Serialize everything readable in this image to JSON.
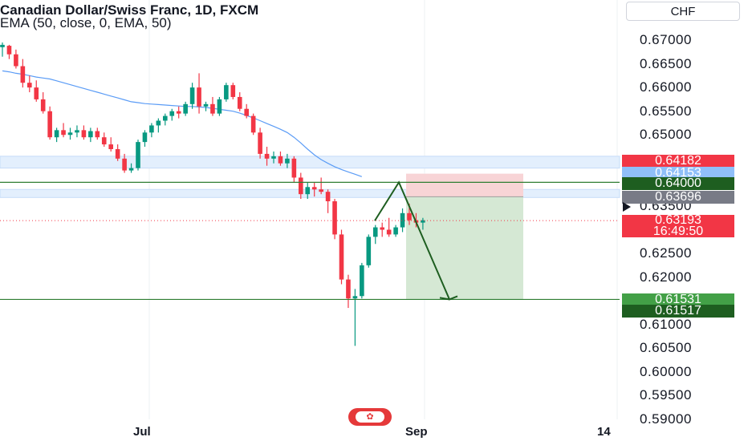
{
  "header": {
    "title": "Canadian Dollar/Swiss Franc, 1D, FXCM",
    "indicator": "EMA (50, close, 0, EMA, 50)",
    "currency_button": "CHF"
  },
  "price_axis": {
    "ticks": [
      "0.67000",
      "0.66500",
      "0.66000",
      "0.65500",
      "0.65000",
      "0.63500",
      "0.62500",
      "0.62000",
      "0.61000",
      "0.60500",
      "0.60000",
      "0.59500",
      "0.59000"
    ]
  },
  "price_tags": {
    "tag_a": "0.64182",
    "tag_b": "0.64153",
    "tag_c": "0.64000",
    "tag_d": "0.63696",
    "current_price": "0.63193",
    "countdown": "16:49:50",
    "tag_e": "0.61531",
    "tag_f": "0.61517"
  },
  "time_axis": {
    "labels": [
      "Jul",
      "Sep",
      "14"
    ]
  },
  "flag_icon": "canada-flag-icon",
  "colors": {
    "up": "#089981",
    "down": "#f23645",
    "ema": "#5b9cf6",
    "level": "#2e7d32",
    "tag_a": "#f23645",
    "tag_b": "#90bff9",
    "tag_c": "#1e5e20",
    "tag_d": "#787b86",
    "tag_current": "#f23645",
    "tag_e": "#43a047",
    "tag_f": "#1e5e20"
  },
  "chart_data": {
    "type": "candlestick",
    "title": "Canadian Dollar/Swiss Franc, 1D, FXCM",
    "ylim": [
      0.59,
      0.67
    ],
    "x_labels": [
      "Jul",
      "Sep",
      "14"
    ],
    "ohlc": [
      [
        0.6685,
        0.6695,
        0.6665,
        0.669
      ],
      [
        0.6688,
        0.669,
        0.666,
        0.667
      ],
      [
        0.667,
        0.668,
        0.664,
        0.6645
      ],
      [
        0.6645,
        0.666,
        0.66,
        0.661
      ],
      [
        0.661,
        0.6625,
        0.659,
        0.66
      ],
      [
        0.66,
        0.6615,
        0.657,
        0.6575
      ],
      [
        0.6575,
        0.659,
        0.6545,
        0.655
      ],
      [
        0.655,
        0.656,
        0.649,
        0.6495
      ],
      [
        0.6495,
        0.6515,
        0.6485,
        0.651
      ],
      [
        0.651,
        0.6525,
        0.6495,
        0.65
      ],
      [
        0.65,
        0.6515,
        0.649,
        0.6505
      ],
      [
        0.6505,
        0.652,
        0.6495,
        0.651
      ],
      [
        0.651,
        0.652,
        0.649,
        0.6495
      ],
      [
        0.6495,
        0.6515,
        0.6485,
        0.6508
      ],
      [
        0.6508,
        0.6515,
        0.649,
        0.6495
      ],
      [
        0.6495,
        0.6505,
        0.6475,
        0.648
      ],
      [
        0.648,
        0.6495,
        0.6465,
        0.647
      ],
      [
        0.647,
        0.648,
        0.6445,
        0.645
      ],
      [
        0.645,
        0.646,
        0.642,
        0.6425
      ],
      [
        0.6425,
        0.644,
        0.642,
        0.643
      ],
      [
        0.643,
        0.649,
        0.6425,
        0.6485
      ],
      [
        0.6485,
        0.651,
        0.6475,
        0.6505
      ],
      [
        0.6505,
        0.6525,
        0.6495,
        0.652
      ],
      [
        0.652,
        0.6535,
        0.6505,
        0.653
      ],
      [
        0.653,
        0.6545,
        0.652,
        0.654
      ],
      [
        0.654,
        0.6555,
        0.653,
        0.655
      ],
      [
        0.655,
        0.656,
        0.6535,
        0.6545
      ],
      [
        0.6545,
        0.657,
        0.654,
        0.6565
      ],
      [
        0.6565,
        0.661,
        0.6555,
        0.66
      ],
      [
        0.66,
        0.663,
        0.6545,
        0.656
      ],
      [
        0.656,
        0.657,
        0.655,
        0.6565
      ],
      [
        0.6565,
        0.658,
        0.654,
        0.6545
      ],
      [
        0.6545,
        0.658,
        0.654,
        0.6575
      ],
      [
        0.6575,
        0.661,
        0.657,
        0.6605
      ],
      [
        0.6605,
        0.661,
        0.6575,
        0.658
      ],
      [
        0.658,
        0.659,
        0.655,
        0.6555
      ],
      [
        0.6555,
        0.6565,
        0.6535,
        0.654
      ],
      [
        0.654,
        0.6545,
        0.65,
        0.6505
      ],
      [
        0.6505,
        0.6515,
        0.645,
        0.646
      ],
      [
        0.646,
        0.6475,
        0.6435,
        0.645
      ],
      [
        0.645,
        0.6465,
        0.644,
        0.6455
      ],
      [
        0.6455,
        0.6465,
        0.6435,
        0.644
      ],
      [
        0.644,
        0.646,
        0.643,
        0.645
      ],
      [
        0.645,
        0.6455,
        0.64,
        0.641
      ],
      [
        0.641,
        0.642,
        0.6365,
        0.6375
      ],
      [
        0.6375,
        0.64,
        0.6365,
        0.639
      ],
      [
        0.639,
        0.64,
        0.637,
        0.6385
      ],
      [
        0.6385,
        0.641,
        0.6375,
        0.638
      ],
      [
        0.638,
        0.6385,
        0.6335,
        0.636
      ],
      [
        0.636,
        0.6365,
        0.628,
        0.629
      ],
      [
        0.629,
        0.63,
        0.6185,
        0.6195
      ],
      [
        0.6195,
        0.6205,
        0.6135,
        0.6155
      ],
      [
        0.6155,
        0.6175,
        0.6055,
        0.616
      ],
      [
        0.616,
        0.623,
        0.6155,
        0.6225
      ],
      [
        0.6225,
        0.629,
        0.622,
        0.6285
      ],
      [
        0.6285,
        0.631,
        0.627,
        0.6305
      ],
      [
        0.6305,
        0.6315,
        0.6285,
        0.63
      ],
      [
        0.63,
        0.6325,
        0.6285,
        0.629
      ],
      [
        0.629,
        0.631,
        0.6285,
        0.6305
      ],
      [
        0.6305,
        0.6345,
        0.6295,
        0.6335
      ],
      [
        0.6335,
        0.6355,
        0.631,
        0.632
      ],
      [
        0.632,
        0.6335,
        0.6305,
        0.6315
      ],
      [
        0.6315,
        0.6325,
        0.63,
        0.632
      ]
    ],
    "ema50": [
      0.6635,
      0.6633,
      0.663,
      0.6628,
      0.6625,
      0.6622,
      0.662,
      0.6618,
      0.6614,
      0.661,
      0.6606,
      0.6602,
      0.6598,
      0.6594,
      0.659,
      0.6586,
      0.6582,
      0.6578,
      0.6574,
      0.657,
      0.6568,
      0.6566,
      0.6565,
      0.6564,
      0.6563,
      0.6562,
      0.6561,
      0.656,
      0.656,
      0.6559,
      0.6558,
      0.6556,
      0.6554,
      0.6552,
      0.655,
      0.6546,
      0.6541,
      0.6536,
      0.653,
      0.6524,
      0.6518,
      0.6512,
      0.6505,
      0.6495,
      0.6483,
      0.647,
      0.6458,
      0.6448,
      0.644,
      0.6433,
      0.6427,
      0.6422,
      0.6417,
      0.6412
    ],
    "zones": [
      [
        0.6455,
        0.643
      ],
      [
        0.6385,
        0.6368
      ]
    ],
    "horizontal_levels": [
      0.64,
      0.6153
    ],
    "current_price": 0.63193,
    "position": {
      "entry": 0.63696,
      "stop": 0.64182,
      "target": 0.61531
    },
    "forecast_path": [
      [
        0.6319
      ],
      [
        0.64
      ],
      [
        0.6153
      ]
    ]
  }
}
